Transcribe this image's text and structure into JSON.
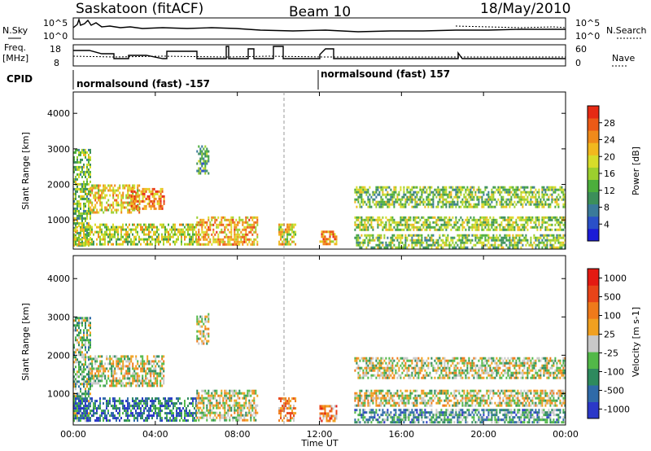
{
  "header": {
    "station": "Saskatoon (fitACF)",
    "beam": "Beam 10",
    "date": "18/May/2010"
  },
  "summary_panel": {
    "nsky_label": "N.Sky",
    "nsky_ticks": [
      "10^5",
      "10^0"
    ],
    "nsearch_label": "N.Search",
    "nsearch_right_ticks": [
      "10^5",
      "10^0"
    ],
    "freq_label": "Freq.",
    "freq_unit": "[MHz]",
    "freq_ticks": [
      "18",
      "8"
    ],
    "nave_label": "Nave",
    "nave_right_ticks": [
      "60",
      "0"
    ],
    "cpid_label": "CPID",
    "cpid_entries": [
      {
        "text": "normalsound (fast) -157",
        "start_hour": 0
      },
      {
        "text": "normalsound (fast) 157",
        "start_hour": 12
      }
    ]
  },
  "chart_data": [
    {
      "type": "heatmap",
      "name": "Power",
      "ylabel": "Slant Range [km]",
      "ylim": [
        180,
        4600
      ],
      "yticks": [
        1000,
        2000,
        3000,
        4000
      ],
      "x_hours": [
        0,
        24
      ],
      "colorbar": {
        "label": "Power [dB]",
        "ticks": [
          "4",
          "8",
          "12",
          "16",
          "20",
          "24",
          "28"
        ],
        "colors": [
          "#1b1bd6",
          "#2a50c8",
          "#3a7a9a",
          "#3c8f5a",
          "#4cae3c",
          "#9ccf2e",
          "#d7dc2a",
          "#f2b81e",
          "#f08a1a",
          "#ec5a17",
          "#e62a14"
        ]
      },
      "regions": [
        {
          "h": [
            0.0,
            0.8
          ],
          "r": [
            300,
            3000
          ],
          "level": 0.45
        },
        {
          "h": [
            0.8,
            3.2
          ],
          "r": [
            1200,
            2000
          ],
          "level": 0.65
        },
        {
          "h": [
            2.8,
            4.4
          ],
          "r": [
            1300,
            1900
          ],
          "level": 0.8
        },
        {
          "h": [
            0.0,
            6.0
          ],
          "r": [
            300,
            900
          ],
          "level": 0.55
        },
        {
          "h": [
            6.0,
            6.6
          ],
          "r": [
            2300,
            3100
          ],
          "level": 0.35
        },
        {
          "h": [
            6.0,
            9.0
          ],
          "r": [
            300,
            1100
          ],
          "level": 0.7
        },
        {
          "h": [
            10.0,
            10.8
          ],
          "r": [
            300,
            900
          ],
          "level": 0.6
        },
        {
          "h": [
            12.0,
            12.8
          ],
          "r": [
            300,
            700
          ],
          "level": 0.75
        },
        {
          "h": [
            13.7,
            24.0
          ],
          "r": [
            1400,
            1950
          ],
          "level": 0.45
        },
        {
          "h": [
            13.7,
            24.0
          ],
          "r": [
            700,
            1100
          ],
          "level": 0.5
        },
        {
          "h": [
            13.7,
            24.0
          ],
          "r": [
            250,
            600
          ],
          "level": 0.45
        }
      ]
    },
    {
      "type": "heatmap",
      "name": "Velocity",
      "ylabel": "Slant Range [km]",
      "ylim": [
        180,
        4600
      ],
      "yticks": [
        1000,
        2000,
        3000,
        4000
      ],
      "x_hours": [
        0,
        24
      ],
      "xticks": [
        "00:00",
        "04:00",
        "08:00",
        "12:00",
        "16:00",
        "20:00",
        "00:00"
      ],
      "xlabel": "Time UT",
      "colorbar": {
        "label": "Velocity [m s-1]",
        "ticks": [
          "1000",
          "500",
          "100",
          "25",
          "-25",
          "-100",
          "-500",
          "-1000"
        ],
        "colors": [
          "#2b38c8",
          "#2f6aa8",
          "#2e8a5e",
          "#52b848",
          "#c8c8c8",
          "#f0a020",
          "#ef7a1a",
          "#e84418",
          "#e41a12"
        ]
      },
      "regions": [
        {
          "h": [
            0.0,
            0.8
          ],
          "r": [
            300,
            3000
          ],
          "level": 0.4
        },
        {
          "h": [
            0.8,
            4.4
          ],
          "r": [
            1200,
            2000
          ],
          "level": 0.5
        },
        {
          "h": [
            0.0,
            6.0
          ],
          "r": [
            300,
            900
          ],
          "level": 0.2
        },
        {
          "h": [
            6.0,
            6.6
          ],
          "r": [
            2300,
            3100
          ],
          "level": 0.5
        },
        {
          "h": [
            6.0,
            9.0
          ],
          "r": [
            300,
            1100
          ],
          "level": 0.5
        },
        {
          "h": [
            10.0,
            10.8
          ],
          "r": [
            300,
            900
          ],
          "level": 0.65
        },
        {
          "h": [
            12.0,
            12.8
          ],
          "r": [
            300,
            700
          ],
          "level": 0.7
        },
        {
          "h": [
            13.7,
            24.0
          ],
          "r": [
            1400,
            1950
          ],
          "level": 0.5
        },
        {
          "h": [
            13.7,
            24.0
          ],
          "r": [
            700,
            1100
          ],
          "level": 0.5
        },
        {
          "h": [
            13.7,
            24.0
          ],
          "r": [
            250,
            600
          ],
          "level": 0.3
        }
      ]
    }
  ]
}
